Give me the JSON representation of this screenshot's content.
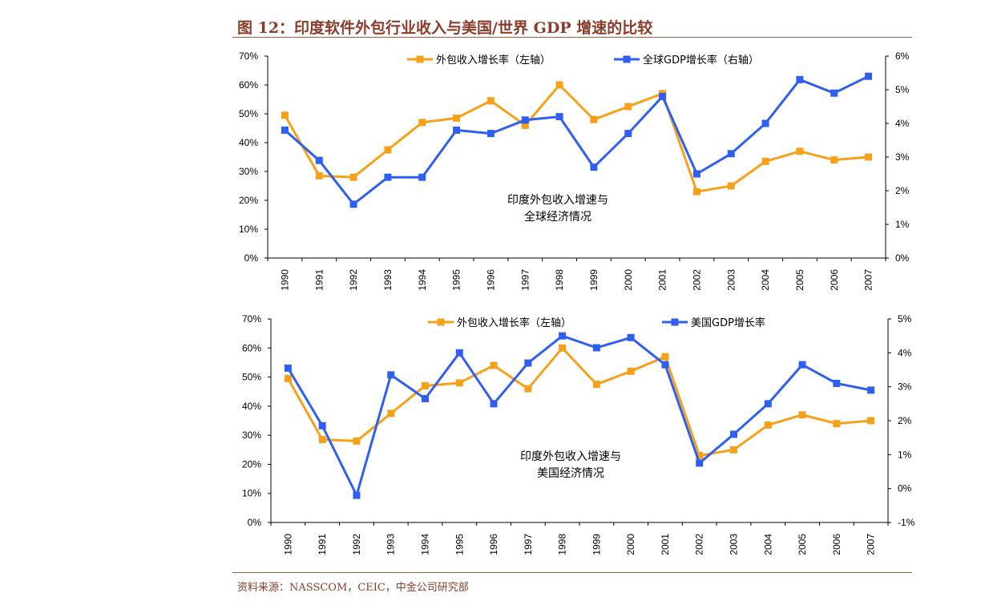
{
  "header": {
    "title": "图 12：印度软件外包行业收入与美国/世界 GDP 增速的比较"
  },
  "footer": {
    "source": "资料来源：NASSCOM，CEIC，中金公司研究部"
  },
  "colors": {
    "orange": "#f7a11a",
    "blue": "#2e5ff0",
    "text": "#8c3c2a"
  },
  "chart_data": [
    {
      "type": "line",
      "categories": [
        "1990",
        "1991",
        "1992",
        "1993",
        "1994",
        "1995",
        "1996",
        "1997",
        "1998",
        "1999",
        "2000",
        "2001",
        "2002",
        "2003",
        "2004",
        "2005",
        "2006",
        "2007"
      ],
      "annotation": [
        "印度外包收入增速与",
        "全球经济情况"
      ],
      "left_axis": {
        "ylim": [
          0,
          70
        ],
        "ticks": [
          "0%",
          "10%",
          "20%",
          "30%",
          "40%",
          "50%",
          "60%",
          "70%"
        ]
      },
      "right_axis": {
        "ylim": [
          0,
          6
        ],
        "ticks": [
          "0%",
          "1%",
          "2%",
          "3%",
          "4%",
          "5%",
          "6%"
        ]
      },
      "legend_position": "top-center",
      "series": [
        {
          "name": "外包收入增长率（左轴）",
          "axis": "left",
          "color": "#f7a11a",
          "values": [
            49.5,
            28.5,
            28,
            37.5,
            47,
            48.5,
            54.5,
            46,
            60,
            48,
            52.5,
            57,
            23,
            25,
            33.5,
            37,
            34,
            35
          ]
        },
        {
          "name": "全球GDP增长率（右轴）",
          "axis": "right",
          "color": "#2e5ff0",
          "values": [
            3.8,
            2.9,
            1.6,
            2.4,
            2.4,
            3.8,
            3.7,
            4.1,
            4.2,
            2.7,
            3.7,
            4.8,
            2.5,
            3.1,
            4.0,
            5.3,
            4.9,
            5.4
          ]
        }
      ]
    },
    {
      "type": "line",
      "categories": [
        "1990",
        "1991",
        "1992",
        "1993",
        "1994",
        "1995",
        "1996",
        "1997",
        "1998",
        "1999",
        "2000",
        "2001",
        "2002",
        "2003",
        "2004",
        "2005",
        "2006",
        "2007"
      ],
      "annotation": [
        "印度外包收入增速与",
        "美国经济情况"
      ],
      "left_axis": {
        "ylim": [
          0,
          70
        ],
        "ticks": [
          "0%",
          "10%",
          "20%",
          "30%",
          "40%",
          "50%",
          "60%",
          "70%"
        ]
      },
      "right_axis": {
        "ylim": [
          -1,
          5
        ],
        "ticks": [
          "-1%",
          "0%",
          "1%",
          "2%",
          "3%",
          "4%",
          "5%"
        ]
      },
      "legend_position": "top-center",
      "series": [
        {
          "name": "外包收入增长率（左轴）",
          "axis": "left",
          "color": "#f7a11a",
          "values": [
            49.5,
            28.5,
            28,
            37.5,
            47,
            48,
            54,
            46,
            60,
            47.5,
            52,
            57,
            23,
            25,
            33.5,
            37,
            34,
            35
          ]
        },
        {
          "name": "美国GDP增长率",
          "axis": "right",
          "color": "#2e5ff0",
          "values": [
            3.55,
            1.85,
            -0.2,
            3.35,
            2.65,
            4.0,
            2.5,
            3.7,
            4.5,
            4.15,
            4.45,
            3.65,
            0.75,
            1.6,
            2.5,
            3.65,
            3.1,
            2.9
          ]
        }
      ]
    }
  ]
}
